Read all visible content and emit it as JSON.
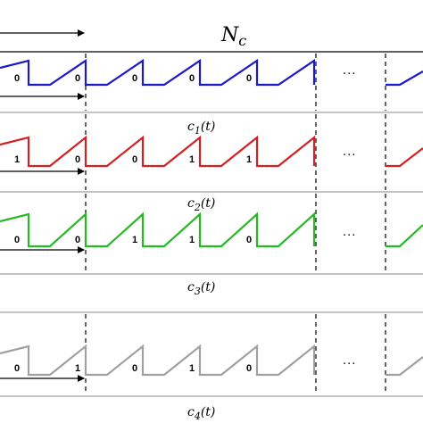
{
  "header": {
    "title": "N_c"
  },
  "colors": {
    "c1": "#1a1acc",
    "c2": "#d42020",
    "c3": "#22bb22",
    "c4": "#a0a0a0",
    "frame": "#000000",
    "separator": "#888888"
  },
  "ellipsis": "···",
  "rows": [
    {
      "color_key": "c1",
      "caption_base": "c",
      "caption_sub": "1",
      "caption_tail": "(t)",
      "bits": [
        "0",
        "0",
        "0",
        "0",
        "0"
      ]
    },
    {
      "color_key": "c2",
      "caption_base": "c",
      "caption_sub": "2",
      "caption_tail": "(t)",
      "bits": [
        "1",
        "0",
        "0",
        "1",
        "1"
      ]
    },
    {
      "color_key": "c3",
      "caption_base": "c",
      "caption_sub": "3",
      "caption_tail": "(t)",
      "bits": [
        "0",
        "0",
        "1",
        "1",
        "0"
      ]
    },
    {
      "color_key": "c4",
      "caption_base": "c",
      "caption_sub": "4",
      "caption_tail": "(t)",
      "bits": [
        "0",
        "1",
        "0",
        "1",
        "0"
      ]
    }
  ]
}
